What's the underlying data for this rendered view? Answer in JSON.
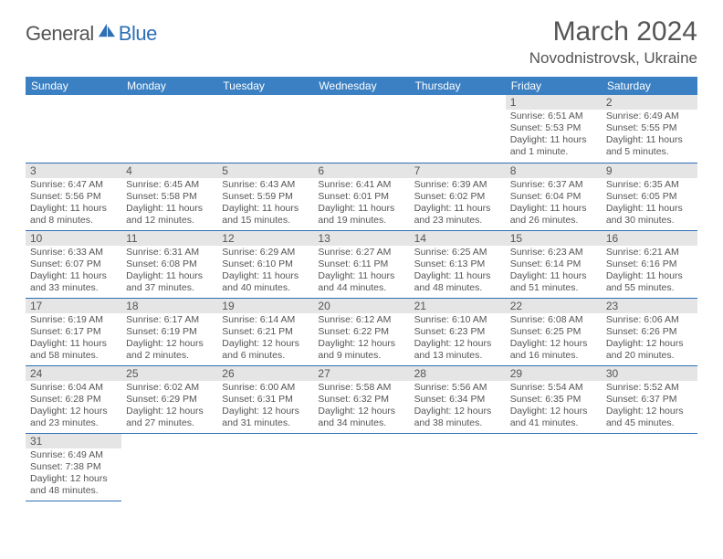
{
  "brand": {
    "part1": "General",
    "part2": "Blue"
  },
  "title": "March 2024",
  "location": "Novodnistrovsk, Ukraine",
  "colors": {
    "header_bar": "#3a80c3",
    "daynum_bg": "#e5e5e5",
    "rule": "#2d6fb5",
    "text": "#555555",
    "brand_accent": "#2d6fb5"
  },
  "weekdays": [
    "Sunday",
    "Monday",
    "Tuesday",
    "Wednesday",
    "Thursday",
    "Friday",
    "Saturday"
  ],
  "grid": {
    "rows": 6,
    "cols": 7,
    "first_day_col": 5,
    "days_in_month": 31
  },
  "days": [
    {
      "n": 1,
      "sunrise": "6:51 AM",
      "sunset": "5:53 PM",
      "daylight": "11 hours and 1 minute."
    },
    {
      "n": 2,
      "sunrise": "6:49 AM",
      "sunset": "5:55 PM",
      "daylight": "11 hours and 5 minutes."
    },
    {
      "n": 3,
      "sunrise": "6:47 AM",
      "sunset": "5:56 PM",
      "daylight": "11 hours and 8 minutes."
    },
    {
      "n": 4,
      "sunrise": "6:45 AM",
      "sunset": "5:58 PM",
      "daylight": "11 hours and 12 minutes."
    },
    {
      "n": 5,
      "sunrise": "6:43 AM",
      "sunset": "5:59 PM",
      "daylight": "11 hours and 15 minutes."
    },
    {
      "n": 6,
      "sunrise": "6:41 AM",
      "sunset": "6:01 PM",
      "daylight": "11 hours and 19 minutes."
    },
    {
      "n": 7,
      "sunrise": "6:39 AM",
      "sunset": "6:02 PM",
      "daylight": "11 hours and 23 minutes."
    },
    {
      "n": 8,
      "sunrise": "6:37 AM",
      "sunset": "6:04 PM",
      "daylight": "11 hours and 26 minutes."
    },
    {
      "n": 9,
      "sunrise": "6:35 AM",
      "sunset": "6:05 PM",
      "daylight": "11 hours and 30 minutes."
    },
    {
      "n": 10,
      "sunrise": "6:33 AM",
      "sunset": "6:07 PM",
      "daylight": "11 hours and 33 minutes."
    },
    {
      "n": 11,
      "sunrise": "6:31 AM",
      "sunset": "6:08 PM",
      "daylight": "11 hours and 37 minutes."
    },
    {
      "n": 12,
      "sunrise": "6:29 AM",
      "sunset": "6:10 PM",
      "daylight": "11 hours and 40 minutes."
    },
    {
      "n": 13,
      "sunrise": "6:27 AM",
      "sunset": "6:11 PM",
      "daylight": "11 hours and 44 minutes."
    },
    {
      "n": 14,
      "sunrise": "6:25 AM",
      "sunset": "6:13 PM",
      "daylight": "11 hours and 48 minutes."
    },
    {
      "n": 15,
      "sunrise": "6:23 AM",
      "sunset": "6:14 PM",
      "daylight": "11 hours and 51 minutes."
    },
    {
      "n": 16,
      "sunrise": "6:21 AM",
      "sunset": "6:16 PM",
      "daylight": "11 hours and 55 minutes."
    },
    {
      "n": 17,
      "sunrise": "6:19 AM",
      "sunset": "6:17 PM",
      "daylight": "11 hours and 58 minutes."
    },
    {
      "n": 18,
      "sunrise": "6:17 AM",
      "sunset": "6:19 PM",
      "daylight": "12 hours and 2 minutes."
    },
    {
      "n": 19,
      "sunrise": "6:14 AM",
      "sunset": "6:21 PM",
      "daylight": "12 hours and 6 minutes."
    },
    {
      "n": 20,
      "sunrise": "6:12 AM",
      "sunset": "6:22 PM",
      "daylight": "12 hours and 9 minutes."
    },
    {
      "n": 21,
      "sunrise": "6:10 AM",
      "sunset": "6:23 PM",
      "daylight": "12 hours and 13 minutes."
    },
    {
      "n": 22,
      "sunrise": "6:08 AM",
      "sunset": "6:25 PM",
      "daylight": "12 hours and 16 minutes."
    },
    {
      "n": 23,
      "sunrise": "6:06 AM",
      "sunset": "6:26 PM",
      "daylight": "12 hours and 20 minutes."
    },
    {
      "n": 24,
      "sunrise": "6:04 AM",
      "sunset": "6:28 PM",
      "daylight": "12 hours and 23 minutes."
    },
    {
      "n": 25,
      "sunrise": "6:02 AM",
      "sunset": "6:29 PM",
      "daylight": "12 hours and 27 minutes."
    },
    {
      "n": 26,
      "sunrise": "6:00 AM",
      "sunset": "6:31 PM",
      "daylight": "12 hours and 31 minutes."
    },
    {
      "n": 27,
      "sunrise": "5:58 AM",
      "sunset": "6:32 PM",
      "daylight": "12 hours and 34 minutes."
    },
    {
      "n": 28,
      "sunrise": "5:56 AM",
      "sunset": "6:34 PM",
      "daylight": "12 hours and 38 minutes."
    },
    {
      "n": 29,
      "sunrise": "5:54 AM",
      "sunset": "6:35 PM",
      "daylight": "12 hours and 41 minutes."
    },
    {
      "n": 30,
      "sunrise": "5:52 AM",
      "sunset": "6:37 PM",
      "daylight": "12 hours and 45 minutes."
    },
    {
      "n": 31,
      "sunrise": "6:49 AM",
      "sunset": "7:38 PM",
      "daylight": "12 hours and 48 minutes."
    }
  ]
}
